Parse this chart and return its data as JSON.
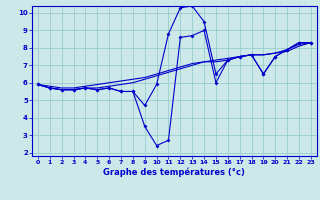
{
  "xlabel": "Graphe des températures (°c)",
  "bg_color": "#cce8e8",
  "grid_color": "#99cccc",
  "line_color": "#0000cc",
  "xlim": [
    -0.5,
    23.5
  ],
  "ylim": [
    1.8,
    10.4
  ],
  "yticks": [
    2,
    3,
    4,
    5,
    6,
    7,
    8,
    9,
    10
  ],
  "xticks": [
    0,
    1,
    2,
    3,
    4,
    5,
    6,
    7,
    8,
    9,
    10,
    11,
    12,
    13,
    14,
    15,
    16,
    17,
    18,
    19,
    20,
    21,
    22,
    23
  ],
  "hours": [
    0,
    1,
    2,
    3,
    4,
    5,
    6,
    7,
    8,
    9,
    10,
    11,
    12,
    13,
    14,
    15,
    16,
    17,
    18,
    19,
    20,
    21,
    22,
    23
  ],
  "line1": [
    5.9,
    5.7,
    5.6,
    5.6,
    5.7,
    5.6,
    5.7,
    5.5,
    5.5,
    3.5,
    2.4,
    2.7,
    8.6,
    8.7,
    9.0,
    6.0,
    7.3,
    7.5,
    7.6,
    6.5,
    7.5,
    7.9,
    8.3,
    8.3
  ],
  "line2": [
    5.9,
    5.7,
    5.6,
    5.6,
    5.7,
    5.6,
    5.7,
    5.5,
    5.5,
    4.7,
    5.9,
    8.8,
    10.3,
    10.4,
    9.5,
    6.5,
    7.3,
    7.5,
    7.6,
    6.5,
    7.5,
    7.9,
    8.3,
    8.3
  ],
  "line3": [
    5.9,
    5.7,
    5.6,
    5.6,
    5.7,
    5.7,
    5.8,
    5.9,
    6.0,
    6.2,
    6.4,
    6.6,
    6.8,
    7.0,
    7.2,
    7.2,
    7.3,
    7.5,
    7.6,
    7.6,
    7.7,
    7.8,
    8.1,
    8.3
  ],
  "line4": [
    5.9,
    5.8,
    5.7,
    5.7,
    5.8,
    5.9,
    6.0,
    6.1,
    6.2,
    6.3,
    6.5,
    6.7,
    6.9,
    7.1,
    7.2,
    7.3,
    7.4,
    7.5,
    7.6,
    7.6,
    7.7,
    7.9,
    8.2,
    8.3
  ]
}
